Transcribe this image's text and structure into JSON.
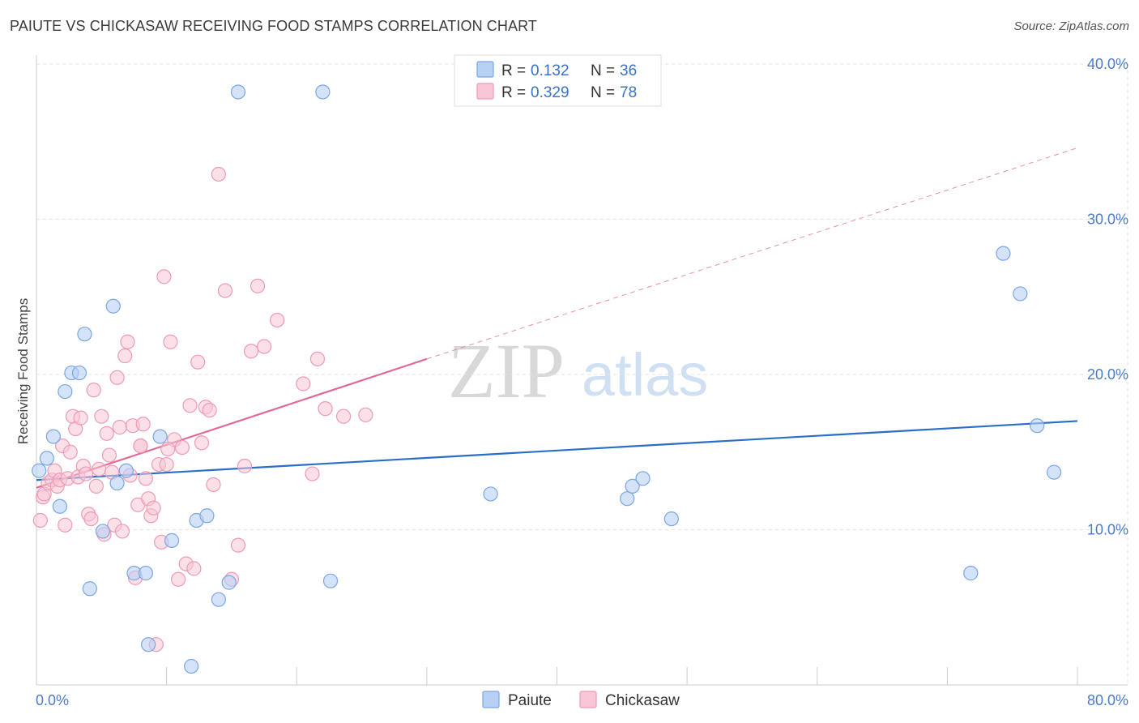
{
  "header": {
    "title": "PAIUTE VS CHICKASAW RECEIVING FOOD STAMPS CORRELATION CHART",
    "source": "Source: ZipAtlas.com"
  },
  "watermark": {
    "zip": "ZIP",
    "atlas": "atlas"
  },
  "legend": {
    "rows": [
      {
        "r_label": "R =",
        "r_value": "0.132",
        "n_label": "N =",
        "n_value": "36"
      },
      {
        "r_label": "R =",
        "r_value": "0.329",
        "n_label": "N =",
        "n_value": "78"
      }
    ]
  },
  "chart_data": {
    "type": "scatter",
    "title": "PAIUTE VS CHICKASAW RECEIVING FOOD STAMPS CORRELATION CHART",
    "xlabel": "",
    "ylabel": "Receiving Food Stamps",
    "xlim": [
      0,
      80
    ],
    "ylim": [
      0,
      40
    ],
    "x_tick_labels": [
      "0.0%",
      "80.0%"
    ],
    "y_ticks": [
      10,
      20,
      30,
      40
    ],
    "y_tick_labels": [
      "10.0%",
      "20.0%",
      "30.0%",
      "40.0%"
    ],
    "grid": true,
    "legend_position": "top-center",
    "colors": {
      "paiute_fill": "#b7d0f3",
      "paiute_stroke": "#7aa6e3",
      "paiute_line": "#2a6ec8",
      "chickasaw_fill": "#f8c6d6",
      "chickasaw_stroke": "#ee9ab5",
      "chickasaw_line": "#e0699a"
    },
    "series": [
      {
        "name": "Paiute",
        "R": 0.132,
        "N": 36,
        "trend": {
          "x": [
            0,
            80
          ],
          "y": [
            13.2,
            17.0
          ]
        },
        "points": [
          [
            0.2,
            13.8
          ],
          [
            0.8,
            14.6
          ],
          [
            1.3,
            16.0
          ],
          [
            1.8,
            11.5
          ],
          [
            2.2,
            18.9
          ],
          [
            2.7,
            20.1
          ],
          [
            3.3,
            20.1
          ],
          [
            3.7,
            22.6
          ],
          [
            4.1,
            6.2
          ],
          [
            5.1,
            9.9
          ],
          [
            5.9,
            24.4
          ],
          [
            6.2,
            13.0
          ],
          [
            6.9,
            13.8
          ],
          [
            7.5,
            7.2
          ],
          [
            8.4,
            7.2
          ],
          [
            8.6,
            2.6
          ],
          [
            9.5,
            16.0
          ],
          [
            10.4,
            9.3
          ],
          [
            11.9,
            1.2
          ],
          [
            12.3,
            10.6
          ],
          [
            13.1,
            10.9
          ],
          [
            14.0,
            5.5
          ],
          [
            14.8,
            6.6
          ],
          [
            15.5,
            38.2
          ],
          [
            22.0,
            38.2
          ],
          [
            22.6,
            6.7
          ],
          [
            34.9,
            12.3
          ],
          [
            45.4,
            12.0
          ],
          [
            45.8,
            12.8
          ],
          [
            46.6,
            13.3
          ],
          [
            48.8,
            10.7
          ],
          [
            71.8,
            7.2
          ],
          [
            74.3,
            27.8
          ],
          [
            75.6,
            25.2
          ],
          [
            76.9,
            16.7
          ],
          [
            78.2,
            13.7
          ]
        ]
      },
      {
        "name": "Chickasaw",
        "R": 0.329,
        "N": 78,
        "trend": {
          "x": [
            0,
            30
          ],
          "y": [
            12.7,
            21.0
          ]
        },
        "trend_extension": {
          "x": [
            30,
            80
          ],
          "y": [
            21.0,
            34.6
          ]
        },
        "points": [
          [
            0.3,
            10.6
          ],
          [
            0.5,
            12.1
          ],
          [
            0.6,
            12.3
          ],
          [
            0.9,
            13.0
          ],
          [
            1.2,
            13.2
          ],
          [
            1.4,
            13.8
          ],
          [
            1.6,
            12.8
          ],
          [
            1.8,
            13.2
          ],
          [
            2.0,
            15.4
          ],
          [
            2.2,
            10.3
          ],
          [
            2.4,
            13.3
          ],
          [
            2.6,
            15.0
          ],
          [
            2.8,
            17.3
          ],
          [
            3.0,
            16.5
          ],
          [
            3.2,
            13.4
          ],
          [
            3.4,
            17.2
          ],
          [
            3.6,
            14.1
          ],
          [
            3.8,
            13.6
          ],
          [
            4.0,
            11.0
          ],
          [
            4.2,
            10.7
          ],
          [
            4.4,
            19.0
          ],
          [
            4.6,
            12.8
          ],
          [
            4.8,
            13.9
          ],
          [
            5.0,
            17.3
          ],
          [
            5.2,
            9.7
          ],
          [
            5.4,
            16.2
          ],
          [
            5.6,
            14.8
          ],
          [
            5.8,
            13.7
          ],
          [
            6.0,
            10.3
          ],
          [
            6.2,
            19.8
          ],
          [
            6.4,
            16.6
          ],
          [
            6.6,
            9.9
          ],
          [
            6.8,
            21.2
          ],
          [
            7.0,
            22.1
          ],
          [
            7.2,
            13.5
          ],
          [
            7.4,
            16.7
          ],
          [
            7.6,
            6.9
          ],
          [
            7.8,
            11.6
          ],
          [
            8.0,
            15.4
          ],
          [
            8.2,
            16.8
          ],
          [
            8.4,
            13.3
          ],
          [
            8.6,
            12.0
          ],
          [
            8.8,
            10.9
          ],
          [
            9.0,
            11.4
          ],
          [
            9.2,
            2.6
          ],
          [
            9.4,
            14.2
          ],
          [
            9.6,
            9.2
          ],
          [
            9.8,
            26.3
          ],
          [
            10.0,
            14.2
          ],
          [
            10.3,
            22.1
          ],
          [
            10.6,
            15.8
          ],
          [
            10.9,
            6.8
          ],
          [
            11.2,
            15.3
          ],
          [
            11.5,
            7.8
          ],
          [
            11.8,
            18.0
          ],
          [
            12.1,
            7.5
          ],
          [
            12.4,
            20.8
          ],
          [
            12.7,
            15.6
          ],
          [
            13.0,
            17.9
          ],
          [
            13.3,
            17.7
          ],
          [
            13.6,
            12.9
          ],
          [
            14.0,
            32.9
          ],
          [
            14.5,
            25.4
          ],
          [
            15.0,
            6.8
          ],
          [
            15.5,
            9.0
          ],
          [
            16.0,
            14.1
          ],
          [
            16.5,
            21.5
          ],
          [
            17.0,
            25.7
          ],
          [
            17.5,
            21.8
          ],
          [
            18.5,
            23.5
          ],
          [
            20.5,
            19.4
          ],
          [
            21.2,
            13.6
          ],
          [
            21.6,
            21.0
          ],
          [
            22.2,
            17.8
          ],
          [
            23.6,
            17.3
          ],
          [
            25.3,
            17.4
          ],
          [
            10.1,
            15.2
          ],
          [
            8.0,
            15.4
          ]
        ]
      }
    ]
  },
  "bottom_legend": {
    "items": [
      {
        "label": "Paiute"
      },
      {
        "label": "Chickasaw"
      }
    ]
  }
}
